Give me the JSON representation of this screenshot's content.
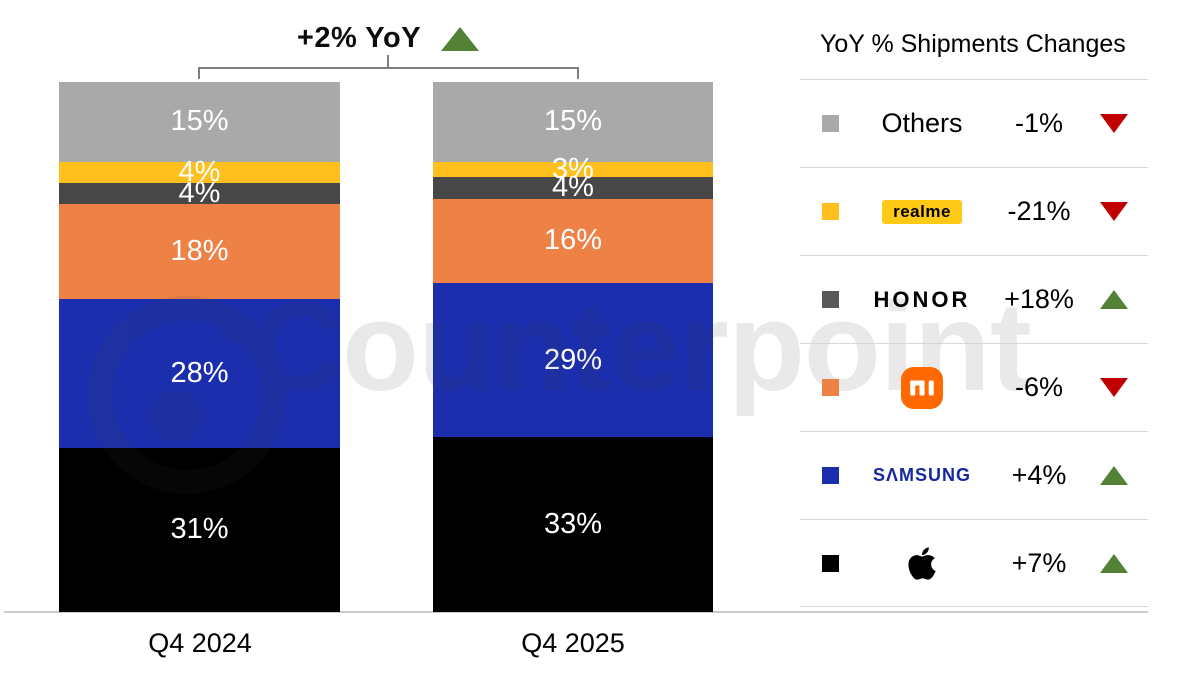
{
  "header": {
    "growth_label": "+2% YoY",
    "arrow_direction": "up",
    "arrow_color": "#538135"
  },
  "chart_data": {
    "type": "bar",
    "subtype": "100-percent-stacked-column",
    "title": "+2% YoY",
    "total_yoy_change_pct": 2,
    "categories": [
      "Q4 2024",
      "Q4 2025"
    ],
    "stack_order_top_to_bottom": [
      "Others",
      "realme",
      "HONOR",
      "Xiaomi",
      "Samsung",
      "Apple"
    ],
    "series": [
      {
        "name": "Others",
        "color": "#A9A9A9",
        "values": [
          15,
          15
        ],
        "labels": [
          "15%",
          "15%"
        ],
        "yoy_change_pct": -1
      },
      {
        "name": "realme",
        "color": "#FFC01E",
        "values": [
          4,
          3
        ],
        "labels": [
          "4%",
          "3%"
        ],
        "yoy_change_pct": -21
      },
      {
        "name": "HONOR",
        "color": "#474747",
        "values": [
          4,
          4
        ],
        "labels": [
          "4%",
          "4%"
        ],
        "yoy_change_pct": 18
      },
      {
        "name": "Xiaomi",
        "color": "#ED8146",
        "values": [
          18,
          16
        ],
        "labels": [
          "18%",
          "16%"
        ],
        "yoy_change_pct": -6
      },
      {
        "name": "Samsung",
        "color": "#1B2FAE",
        "values": [
          28,
          29
        ],
        "labels": [
          "28%",
          "29%"
        ],
        "yoy_change_pct": 4
      },
      {
        "name": "Apple",
        "color": "#000000",
        "values": [
          31,
          33
        ],
        "labels": [
          "31%",
          "33%"
        ],
        "yoy_change_pct": 7
      }
    ],
    "ylim": [
      0,
      100
    ],
    "grid": false,
    "legend_position": "right"
  },
  "legend": {
    "title": "YoY % Shipments Changes",
    "rows": [
      {
        "brand": "Others",
        "swatch": "#A9A9A9",
        "logo_text": "Others",
        "change": "-1%",
        "direction": "down",
        "arrow_color": "#C00000"
      },
      {
        "brand": "realme",
        "swatch": "#FFC01E",
        "logo_text": "realme",
        "logo_bg": "#FFC915",
        "change": "-21%",
        "direction": "down",
        "arrow_color": "#C00000"
      },
      {
        "brand": "HONOR",
        "swatch": "#595959",
        "logo_text": "HONOR",
        "change": "+18%",
        "direction": "up",
        "arrow_color": "#538135"
      },
      {
        "brand": "Xiaomi",
        "swatch": "#ED8146",
        "logo_text": "mi",
        "logo_bg": "#FF6900",
        "change": "-6%",
        "direction": "down",
        "arrow_color": "#C00000"
      },
      {
        "brand": "Samsung",
        "swatch": "#1B2FAE",
        "logo_text": "SΛMSUNG",
        "logo_color": "#1428A0",
        "change": "+4%",
        "direction": "up",
        "arrow_color": "#538135"
      },
      {
        "brand": "Apple",
        "swatch": "#000000",
        "change": "+7%",
        "direction": "up",
        "arrow_color": "#538135"
      }
    ]
  },
  "axis": {
    "labels": [
      "Q4 2024",
      "Q4 2025"
    ]
  },
  "watermark": {
    "text": "Counterpoint"
  }
}
